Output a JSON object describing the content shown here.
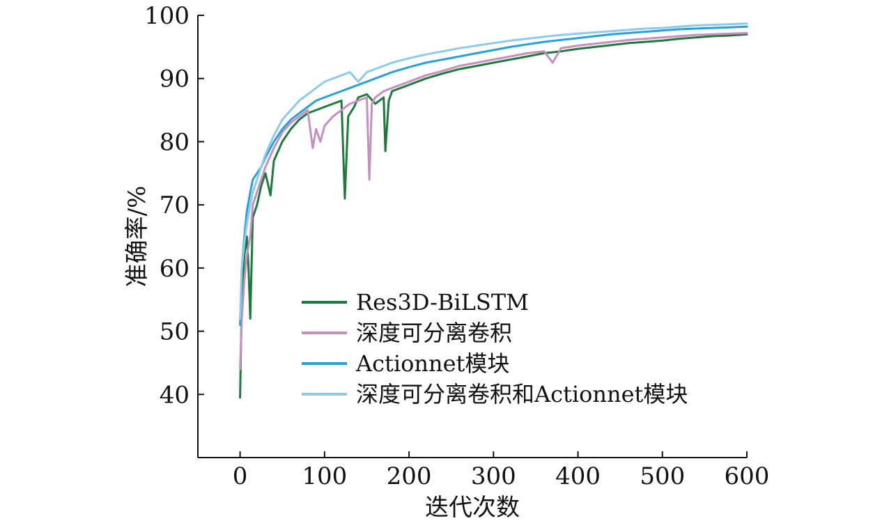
{
  "chart_data": {
    "type": "line",
    "title": "",
    "xlabel": "迭代次数",
    "ylabel": "准确率/%",
    "xlim": [
      -50,
      600
    ],
    "ylim": [
      30,
      100
    ],
    "xticks": [
      0,
      100,
      200,
      300,
      400,
      500,
      600
    ],
    "xtick_labels": [
      "0",
      "100",
      "200",
      "300",
      "400",
      "500",
      "600"
    ],
    "yticks": [
      40,
      50,
      60,
      70,
      80,
      90,
      100
    ],
    "ytick_labels": [
      "40",
      "50",
      "60",
      "70",
      "80",
      "90",
      "100"
    ],
    "grid": false,
    "legend_position": "center",
    "series": [
      {
        "name": "Res3D-BiLSTM",
        "color": "#1e7a3c",
        "x": [
          0,
          2,
          5,
          8,
          10,
          12,
          15,
          20,
          25,
          30,
          36,
          40,
          50,
          60,
          70,
          80,
          90,
          100,
          110,
          120,
          124,
          128,
          135,
          140,
          150,
          160,
          170,
          172,
          176,
          180,
          200,
          220,
          240,
          260,
          280,
          300,
          320,
          340,
          360,
          380,
          400,
          420,
          440,
          460,
          480,
          500,
          520,
          540,
          560,
          580,
          600
        ],
        "y": [
          39.5,
          55.0,
          62.0,
          65.0,
          60.0,
          52.0,
          68.0,
          70.0,
          73.0,
          75.0,
          71.5,
          77.0,
          80.0,
          82.0,
          83.5,
          84.5,
          85.0,
          85.5,
          86.0,
          86.5,
          71.0,
          84.0,
          85.5,
          87.0,
          87.5,
          86.0,
          87.0,
          78.5,
          86.5,
          88.0,
          89.0,
          90.0,
          90.8,
          91.5,
          92.0,
          92.5,
          93.0,
          93.5,
          94.0,
          94.3,
          94.7,
          95.0,
          95.3,
          95.6,
          95.8,
          96.0,
          96.3,
          96.5,
          96.7,
          96.8,
          97.0
        ]
      },
      {
        "name": "深度可分离卷积",
        "color": "#c58fbe",
        "x": [
          0,
          2,
          5,
          8,
          12,
          15,
          20,
          25,
          30,
          40,
          50,
          60,
          70,
          80,
          86,
          90,
          95,
          100,
          110,
          120,
          130,
          140,
          150,
          153,
          156,
          160,
          170,
          180,
          200,
          220,
          240,
          260,
          280,
          300,
          320,
          340,
          360,
          370,
          380,
          400,
          420,
          440,
          460,
          480,
          500,
          520,
          540,
          560,
          580,
          600
        ],
        "y": [
          44.0,
          52.0,
          58.0,
          62.0,
          65.0,
          70.0,
          72.0,
          74.0,
          76.0,
          79.0,
          81.5,
          83.0,
          84.0,
          85.0,
          79.0,
          82.0,
          80.0,
          82.5,
          84.0,
          85.0,
          86.0,
          86.5,
          87.0,
          74.0,
          86.0,
          87.0,
          88.0,
          88.5,
          89.5,
          90.5,
          91.2,
          92.0,
          92.5,
          93.0,
          93.5,
          94.0,
          94.3,
          92.5,
          94.8,
          95.2,
          95.5,
          95.8,
          96.1,
          96.3,
          96.5,
          96.7,
          96.9,
          97.0,
          97.1,
          97.2
        ]
      },
      {
        "name": "Actionnet模块",
        "color": "#2a9fd8",
        "x": [
          0,
          2,
          5,
          8,
          12,
          15,
          20,
          25,
          30,
          40,
          50,
          60,
          70,
          80,
          90,
          100,
          110,
          120,
          130,
          140,
          150,
          160,
          170,
          180,
          200,
          220,
          240,
          260,
          280,
          300,
          320,
          340,
          360,
          380,
          400,
          420,
          440,
          460,
          480,
          500,
          520,
          540,
          560,
          580,
          600
        ],
        "y": [
          51.0,
          60.0,
          65.0,
          69.0,
          72.0,
          74.0,
          75.0,
          76.0,
          77.5,
          80.0,
          82.0,
          83.5,
          84.5,
          85.5,
          86.5,
          87.0,
          87.5,
          88.0,
          88.5,
          89.0,
          89.5,
          90.0,
          90.5,
          91.0,
          91.8,
          92.5,
          93.0,
          93.5,
          94.0,
          94.5,
          95.0,
          95.4,
          95.8,
          96.1,
          96.4,
          96.7,
          97.0,
          97.2,
          97.4,
          97.6,
          97.8,
          97.9,
          98.0,
          98.1,
          98.2
        ]
      },
      {
        "name": "深度可分离卷积和Actionnet模块",
        "color": "#8ccbec",
        "x": [
          0,
          2,
          5,
          8,
          12,
          15,
          20,
          25,
          30,
          40,
          50,
          60,
          70,
          80,
          90,
          100,
          110,
          120,
          130,
          140,
          150,
          160,
          170,
          180,
          200,
          220,
          240,
          260,
          280,
          300,
          320,
          340,
          360,
          380,
          400,
          420,
          440,
          460,
          480,
          500,
          520,
          540,
          560,
          580,
          600
        ],
        "y": [
          52.0,
          60.0,
          64.0,
          67.0,
          70.0,
          72.0,
          74.0,
          76.0,
          78.0,
          81.0,
          83.5,
          85.0,
          86.5,
          87.5,
          88.5,
          89.5,
          90.0,
          90.5,
          91.0,
          89.5,
          91.0,
          91.5,
          92.0,
          92.5,
          93.2,
          93.8,
          94.3,
          94.8,
          95.2,
          95.6,
          96.0,
          96.3,
          96.6,
          96.9,
          97.1,
          97.3,
          97.5,
          97.7,
          97.9,
          98.0,
          98.2,
          98.4,
          98.5,
          98.6,
          98.7
        ]
      }
    ]
  }
}
